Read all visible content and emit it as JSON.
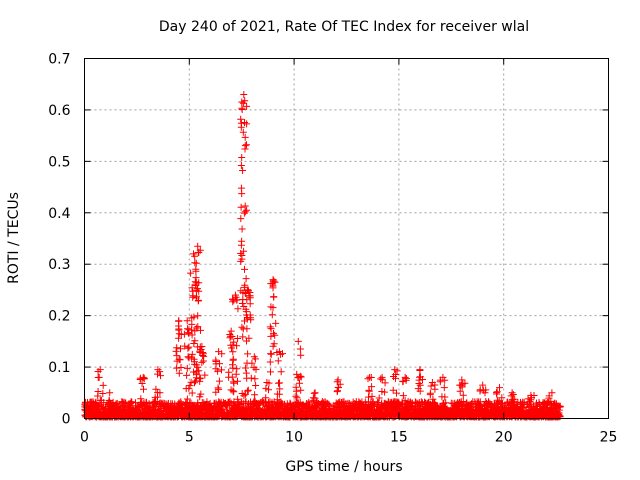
{
  "chart_data": {
    "type": "scatter",
    "title": "Day 240 of 2021, Rate Of TEC Index for receiver wlal",
    "xlabel": "GPS time / hours",
    "ylabel": "ROTI / TECUs",
    "xlim": [
      0,
      25
    ],
    "ylim": [
      0,
      0.7
    ],
    "xticks": [
      0,
      5,
      10,
      15,
      20,
      25
    ],
    "yticks": [
      0,
      0.1,
      0.2,
      0.3,
      0.4,
      0.5,
      0.6,
      0.7
    ],
    "xtick_labels": [
      "0",
      "5",
      "10",
      "15",
      "20",
      "25"
    ],
    "ytick_labels": [
      "0",
      "0.1",
      "0.2",
      "0.3",
      "0.4",
      "0.5",
      "0.6",
      "0.7"
    ],
    "grid": true,
    "marker": "plus",
    "color": "#ff0000",
    "x_range_of_data": [
      0,
      22.7
    ],
    "peaks": [
      {
        "x": 0.75,
        "y": 0.095
      },
      {
        "x": 1.2,
        "y": 0.05
      },
      {
        "x": 2.8,
        "y": 0.08
      },
      {
        "x": 3.5,
        "y": 0.095
      },
      {
        "x": 4.5,
        "y": 0.19
      },
      {
        "x": 4.9,
        "y": 0.19
      },
      {
        "x": 5.2,
        "y": 0.32
      },
      {
        "x": 5.4,
        "y": 0.335
      },
      {
        "x": 5.6,
        "y": 0.14
      },
      {
        "x": 6.4,
        "y": 0.13
      },
      {
        "x": 7.0,
        "y": 0.17
      },
      {
        "x": 7.2,
        "y": 0.24
      },
      {
        "x": 7.6,
        "y": 0.63
      },
      {
        "x": 7.8,
        "y": 0.25
      },
      {
        "x": 8.1,
        "y": 0.12
      },
      {
        "x": 8.7,
        "y": 0.07
      },
      {
        "x": 9.0,
        "y": 0.27
      },
      {
        "x": 9.3,
        "y": 0.13
      },
      {
        "x": 10.2,
        "y": 0.15
      },
      {
        "x": 11.0,
        "y": 0.05
      },
      {
        "x": 12.1,
        "y": 0.075
      },
      {
        "x": 13.6,
        "y": 0.08
      },
      {
        "x": 14.2,
        "y": 0.08
      },
      {
        "x": 14.8,
        "y": 0.095
      },
      {
        "x": 15.3,
        "y": 0.08
      },
      {
        "x": 16.0,
        "y": 0.095
      },
      {
        "x": 16.6,
        "y": 0.07
      },
      {
        "x": 17.1,
        "y": 0.08
      },
      {
        "x": 18.0,
        "y": 0.075
      },
      {
        "x": 19.0,
        "y": 0.065
      },
      {
        "x": 19.8,
        "y": 0.06
      },
      {
        "x": 20.4,
        "y": 0.05
      },
      {
        "x": 21.3,
        "y": 0.045
      },
      {
        "x": 22.3,
        "y": 0.05
      }
    ]
  }
}
